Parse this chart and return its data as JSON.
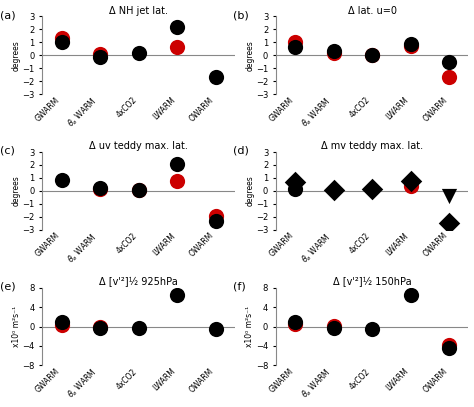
{
  "categories": [
    "GWARM",
    "θ_e WARM",
    "4xCO2",
    "LWARM",
    "OWARM"
  ],
  "cat_labels": [
    "GWARM",
    "θₑ WARM",
    "4xCO2",
    "LWARM",
    "OWARM"
  ],
  "panels": [
    {
      "label": "(a)",
      "title": "Δ NH jet lat.",
      "ylabel": "degrees",
      "ylim": [
        -3,
        3
      ],
      "yticks": [
        -3,
        -2,
        -1,
        0,
        1,
        2,
        3
      ],
      "black_dots": [
        1.0,
        -0.15,
        0.2,
        2.2,
        -1.7
      ],
      "red_dots": [
        1.3,
        0.1,
        null,
        0.65,
        null
      ],
      "black_triangles": [],
      "black_diamonds": [],
      "red_triangles": [],
      "red_diamonds": []
    },
    {
      "label": "(b)",
      "title": "Δ lat. u=0",
      "ylabel": "degrees",
      "ylim": [
        -3,
        3
      ],
      "yticks": [
        -3,
        -2,
        -1,
        0,
        1,
        2,
        3
      ],
      "black_dots": [
        0.65,
        0.3,
        0.05,
        0.9,
        -0.5
      ],
      "red_dots": [
        1.0,
        0.15,
        0.05,
        0.7,
        -1.7
      ],
      "black_triangles": [],
      "black_diamonds": [],
      "red_triangles": [],
      "red_diamonds": []
    },
    {
      "label": "(c)",
      "title": "Δ uv teddy max. lat.",
      "ylabel": "degrees",
      "ylim": [
        -3,
        3
      ],
      "yticks": [
        -3,
        -2,
        -1,
        0,
        1,
        2,
        3
      ],
      "black_dots": [
        0.85,
        0.25,
        0.05,
        2.05,
        -2.3
      ],
      "red_dots": [
        null,
        0.15,
        0.05,
        0.75,
        -1.95
      ],
      "black_triangles": [],
      "black_diamonds": [],
      "red_triangles": [],
      "red_diamonds": []
    },
    {
      "label": "(d)",
      "title": "Δ mv teddy max. lat.",
      "ylabel": "degrees",
      "ylim": [
        -3,
        3
      ],
      "yticks": [
        -3,
        -2,
        -1,
        0,
        1,
        2,
        3
      ],
      "black_dots": [
        0.15,
        null,
        null,
        null,
        null
      ],
      "red_dots": [
        null,
        null,
        null,
        0.4,
        null
      ],
      "black_triangles": [
        null,
        null,
        null,
        null,
        -0.4
      ],
      "black_diamonds": [
        0.65,
        0.05,
        0.15,
        0.75,
        -2.5
      ],
      "red_triangles": [],
      "red_diamonds": []
    },
    {
      "label": "(e)",
      "title": "Δ [v'²]½ 925hPa",
      "ylabel": "x10⁰ m²s⁻¹",
      "ylim": [
        -8,
        8
      ],
      "yticks": [
        -8,
        -4,
        0,
        4,
        8
      ],
      "black_dots": [
        1.0,
        -0.3,
        -0.2,
        6.5,
        -0.5
      ],
      "red_dots": [
        0.3,
        0.0,
        null,
        null,
        null
      ],
      "black_triangles": [],
      "black_diamonds": [],
      "red_triangles": [],
      "red_diamonds": []
    },
    {
      "label": "(f)",
      "title": "Δ [v'²]½ 150hPa",
      "ylabel": "x10⁰ m²s⁻¹",
      "ylim": [
        -8,
        8
      ],
      "yticks": [
        -8,
        -4,
        0,
        4,
        8
      ],
      "black_dots": [
        1.0,
        -0.3,
        -0.5,
        6.5,
        -4.5
      ],
      "red_dots": [
        0.5,
        0.2,
        null,
        null,
        -3.8
      ],
      "black_triangles": [],
      "black_diamonds": [],
      "red_triangles": [],
      "red_diamonds": []
    }
  ],
  "x_positions": [
    0,
    1,
    2,
    3,
    4
  ],
  "dot_size": 30,
  "black_color": "#000000",
  "red_color": "#cc0000",
  "bg_color": "#ffffff",
  "grid_color": "#888888"
}
